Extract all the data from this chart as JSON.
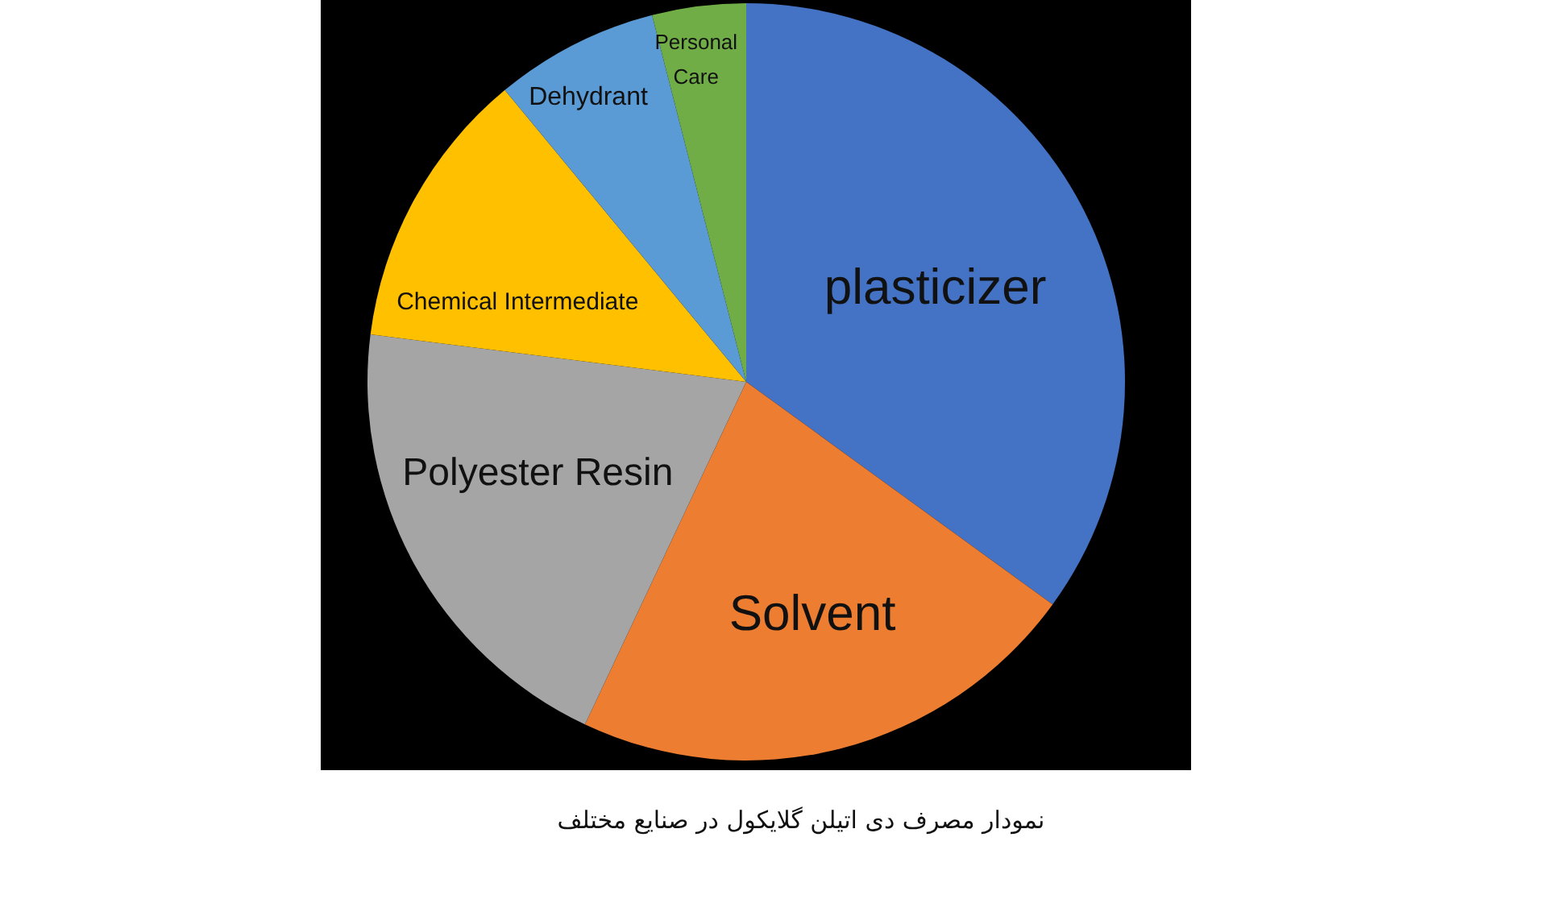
{
  "chart_data": {
    "type": "pie",
    "title": "نمودار مصرف دی اتیلن گلایکول در صنایع مختلف",
    "categories": [
      "plasticizer",
      "Solvent",
      "Polyester Resin",
      "Chemical Intermediate",
      "Dehydrant",
      "Personal Care"
    ],
    "values": [
      35,
      22,
      20,
      12,
      7,
      4
    ],
    "colors": [
      "#4472c4",
      "#ed7d31",
      "#a5a5a5",
      "#ffc000",
      "#5b9bd5",
      "#70ad47"
    ]
  }
}
